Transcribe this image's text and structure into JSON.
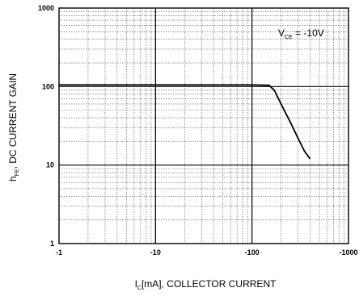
{
  "chart_data": {
    "type": "line",
    "x_scale": "log",
    "y_scale": "log",
    "xlim": [
      -1,
      -1000
    ],
    "ylim": [
      1,
      1000
    ],
    "x_ticks": [
      "-1",
      "-10",
      "-100",
      "-1000"
    ],
    "y_ticks": [
      "1",
      "10",
      "100",
      "1000"
    ],
    "xlabel": {
      "main": "I",
      "sub": "C",
      "rest": "[mA], COLLECTOR CURRENT"
    },
    "ylabel": {
      "main": "h",
      "sub": "FE",
      "rest": ", DC CURRENT GAIN"
    },
    "annotation": {
      "main": "V",
      "sub": "CE",
      "rest": " = -10V"
    },
    "grid": true,
    "series": [
      {
        "x": [
          -1,
          -2,
          -5,
          -10,
          -20,
          -50,
          -100,
          -150,
          -170,
          -200,
          -250,
          -300,
          -350,
          -400
        ],
        "y": [
          105,
          105,
          105,
          105,
          105,
          105,
          105,
          104,
          90,
          60,
          35,
          22,
          15,
          12
        ]
      }
    ]
  }
}
